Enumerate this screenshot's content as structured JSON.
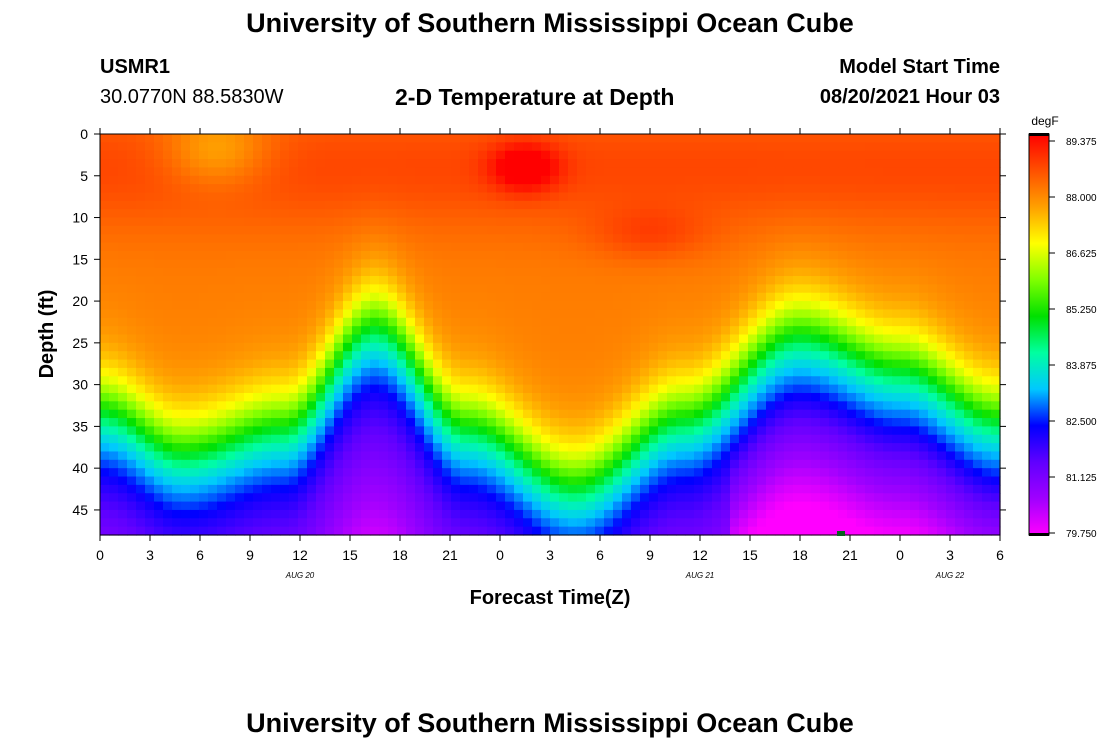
{
  "header": {
    "title": "University of Southern Mississippi Ocean Cube",
    "footer_title": "University of Southern Mississippi Ocean Cube",
    "station": "USMR1",
    "coords": "30.0770N  88.5830W",
    "plot_title": "2-D Temperature at Depth",
    "model_label": "Model Start Time",
    "model_time": "08/20/2021 Hour 03"
  },
  "chart_data": {
    "type": "heatmap",
    "title": "2-D Temperature at Depth",
    "xlabel": "Forecast Time(Z)",
    "ylabel": "Depth (ft)",
    "x_ticks": [
      "0",
      "3",
      "6",
      "9",
      "12",
      "15",
      "18",
      "21",
      "0",
      "3",
      "6",
      "9",
      "12",
      "15",
      "18",
      "21",
      "0",
      "3",
      "6"
    ],
    "x_hours": [
      0,
      3,
      6,
      9,
      12,
      15,
      18,
      21,
      24,
      27,
      30,
      33,
      36,
      39,
      42,
      45,
      48,
      51,
      54
    ],
    "xlim": [
      0,
      54
    ],
    "y_ticks": [
      0,
      5,
      10,
      15,
      20,
      25,
      30,
      35,
      40,
      45
    ],
    "ylim": [
      0,
      48
    ],
    "date_labels": [
      {
        "text": "AUG  20",
        "hour": 12
      },
      {
        "text": "AUG  21",
        "hour": 36
      },
      {
        "text": "AUG  22",
        "hour": 51
      }
    ],
    "colorbar": {
      "unit": "degF",
      "min": 79.75,
      "max": 89.375,
      "ticks": [
        "89.375",
        "88.000",
        "86.625",
        "85.250",
        "83.875",
        "82.500",
        "81.125",
        "79.750"
      ],
      "colors": [
        "#ff00ff",
        "#a000ff",
        "#6000ff",
        "#0000ff",
        "#00c8ff",
        "#00ffa0",
        "#00e000",
        "#80ff00",
        "#ffff00",
        "#ffa000",
        "#ff5000",
        "#ff0000"
      ]
    },
    "thermocline": [
      {
        "hour": 0,
        "depth": 33
      },
      {
        "hour": 5,
        "depth": 38
      },
      {
        "hour": 11,
        "depth": 35
      },
      {
        "hour": 16.5,
        "depth": 23
      },
      {
        "hour": 22,
        "depth": 35
      },
      {
        "hour": 28.5,
        "depth": 42
      },
      {
        "hour": 35,
        "depth": 34
      },
      {
        "hour": 42,
        "depth": 24
      },
      {
        "hour": 48,
        "depth": 28
      },
      {
        "hour": 54,
        "depth": 34
      }
    ],
    "warm_core": {
      "hour": 25.5,
      "depth": 4,
      "value": 89.3
    }
  }
}
